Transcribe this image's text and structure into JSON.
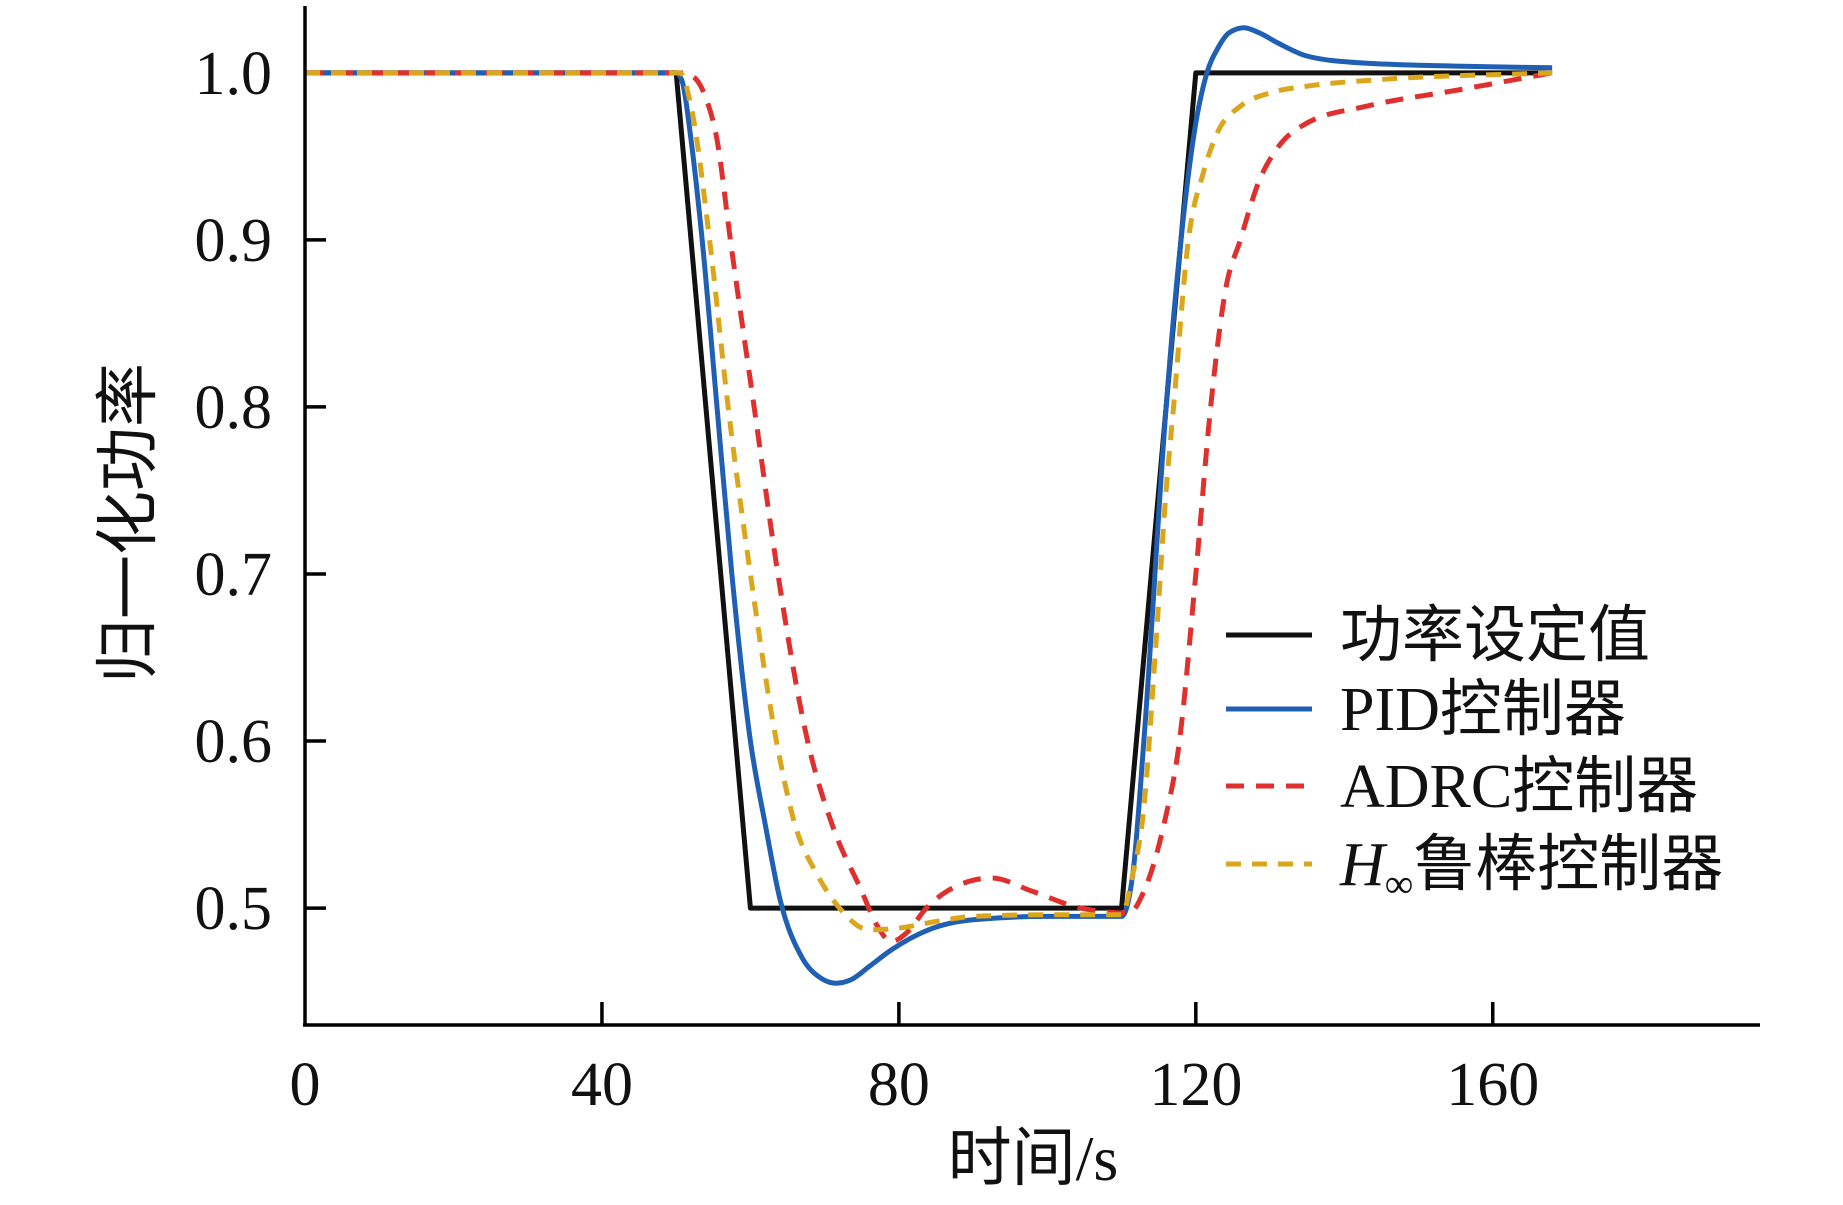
{
  "chart_data": {
    "type": "line",
    "title": "",
    "xlabel": "时间/s",
    "ylabel": "归一化功率",
    "xlim": [
      0,
      196
    ],
    "ylim": [
      0.43,
      1.04
    ],
    "xticks": [
      0,
      40,
      80,
      120,
      160
    ],
    "xtick_labels": [
      "0",
      "40",
      "80",
      "120",
      "160"
    ],
    "yticks": [
      0.5,
      0.6,
      0.7,
      0.8,
      0.9,
      1.0
    ],
    "ytick_labels": [
      "0.5",
      "0.6",
      "0.7",
      "0.8",
      "0.9",
      "1.0"
    ],
    "grid": false,
    "legend_position": "center-right",
    "series": [
      {
        "name": "功率设定值",
        "color": "#111111",
        "style": "solid",
        "interpolation": "linear",
        "x": [
          0,
          50,
          60,
          110,
          120,
          168
        ],
        "y": [
          1.0,
          1.0,
          0.5,
          0.5,
          1.0,
          1.0
        ]
      },
      {
        "name": "PID控制器",
        "color": "#1f5fb4",
        "style": "solid",
        "interpolation": "smooth",
        "x": [
          0,
          50,
          50.8,
          52,
          53.5,
          55.5,
          57.5,
          60,
          62,
          64,
          67,
          69.5,
          71.5,
          73.5,
          76,
          79,
          84,
          90,
          100,
          110,
          111.5,
          113,
          116,
          118,
          120,
          121.5,
          123,
          124.5,
          126.5,
          128.5,
          131,
          135,
          142,
          155,
          168
        ],
        "y": [
          1.0,
          1.0,
          0.995,
          0.96,
          0.9,
          0.8,
          0.7,
          0.6,
          0.55,
          0.505,
          0.47,
          0.458,
          0.455,
          0.457,
          0.465,
          0.475,
          0.487,
          0.493,
          0.495,
          0.495,
          0.52,
          0.6,
          0.8,
          0.9,
          0.97,
          1.0,
          1.015,
          1.024,
          1.027,
          1.024,
          1.018,
          1.01,
          1.006,
          1.004,
          1.003
        ]
      },
      {
        "name": "ADRC控制器",
        "color": "#e0302e",
        "style": "dashed",
        "interpolation": "smooth",
        "x": [
          0,
          51,
          52.5,
          54,
          55.5,
          57.3,
          60.5,
          63.7,
          67.7,
          71,
          75,
          77,
          79,
          81,
          83.7,
          87.7,
          92.5,
          98,
          104.5,
          111,
          113,
          115.7,
          117.8,
          120,
          122,
          124,
          126,
          128.5,
          131,
          135,
          143,
          155.7,
          168
        ],
        "y": [
          1.0,
          1.0,
          0.997,
          0.985,
          0.96,
          0.9,
          0.8,
          0.7,
          0.6,
          0.55,
          0.51,
          0.49,
          0.48,
          0.485,
          0.5,
          0.513,
          0.518,
          0.51,
          0.5,
          0.497,
          0.51,
          0.55,
          0.6,
          0.7,
          0.8,
          0.87,
          0.9,
          0.935,
          0.955,
          0.97,
          0.98,
          0.99,
          1.0
        ]
      },
      {
        "name": "H∞鲁棒控制器",
        "color": "#dba51c",
        "style": "dashed",
        "interpolation": "smooth",
        "x": [
          0,
          50.5,
          52,
          54.5,
          57,
          60,
          63.5,
          66,
          69,
          72,
          76,
          80,
          85,
          90,
          100,
          110,
          111.5,
          113,
          114.5,
          116,
          117,
          119,
          121,
          123,
          126,
          130,
          135,
          145,
          168
        ],
        "y": [
          1.0,
          1.0,
          0.98,
          0.9,
          0.8,
          0.7,
          0.6,
          0.55,
          0.52,
          0.5,
          0.487,
          0.488,
          0.492,
          0.495,
          0.496,
          0.496,
          0.52,
          0.56,
          0.65,
          0.75,
          0.8,
          0.9,
          0.94,
          0.965,
          0.98,
          0.988,
          0.992,
          0.996,
          1.0
        ]
      }
    ]
  }
}
